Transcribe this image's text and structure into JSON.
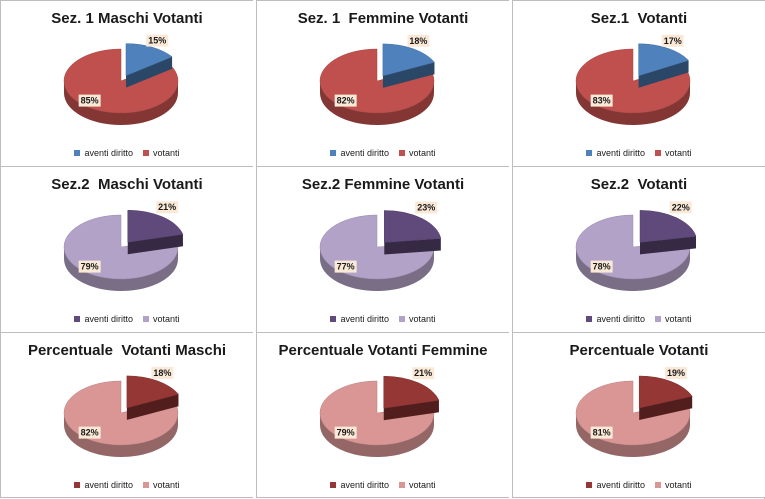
{
  "chart_data": [
    {
      "type": "pie",
      "title": "Sez. 1 Maschi Votanti",
      "legend_position": "bottom",
      "slices": [
        {
          "name": "aventi diritto",
          "value": 15,
          "label": "15%",
          "color": "#4f81bd",
          "exploded": true
        },
        {
          "name": "votanti",
          "value": 85,
          "label": "85%",
          "color": "#c0504d",
          "exploded": false
        }
      ]
    },
    {
      "type": "pie",
      "title": "Sez. 1  Femmine Votanti",
      "legend_position": "bottom",
      "slices": [
        {
          "name": "aventi diritto",
          "value": 18,
          "label": "18%",
          "color": "#4f81bd",
          "exploded": true
        },
        {
          "name": "votanti",
          "value": 82,
          "label": "82%",
          "color": "#c0504d",
          "exploded": false
        }
      ]
    },
    {
      "type": "pie",
      "title": "Sez.1  Votanti",
      "legend_position": "bottom",
      "slices": [
        {
          "name": "aventi diritto",
          "value": 17,
          "label": "17%",
          "color": "#4f81bd",
          "exploded": true
        },
        {
          "name": "votanti",
          "value": 83,
          "label": "83%",
          "color": "#c0504d",
          "exploded": false
        }
      ]
    },
    {
      "type": "pie",
      "title": "Sez.2  Maschi Votanti",
      "legend_position": "bottom",
      "slices": [
        {
          "name": "aventi diritto",
          "value": 21,
          "label": "21%",
          "color": "#604a7b",
          "exploded": true
        },
        {
          "name": "votanti",
          "value": 79,
          "label": "79%",
          "color": "#b3a2c7",
          "exploded": false
        }
      ]
    },
    {
      "type": "pie",
      "title": "Sez.2 Femmine Votanti",
      "legend_position": "bottom",
      "slices": [
        {
          "name": "aventi diritto",
          "value": 23,
          "label": "23%",
          "color": "#604a7b",
          "exploded": true
        },
        {
          "name": "votanti",
          "value": 77,
          "label": "77%",
          "color": "#b3a2c7",
          "exploded": false
        }
      ]
    },
    {
      "type": "pie",
      "title": "Sez.2  Votanti",
      "legend_position": "bottom",
      "slices": [
        {
          "name": "aventi diritto",
          "value": 22,
          "label": "22%",
          "color": "#604a7b",
          "exploded": true
        },
        {
          "name": "votanti",
          "value": 78,
          "label": "78%",
          "color": "#b3a2c7",
          "exploded": false
        }
      ]
    },
    {
      "type": "pie",
      "title": "Percentuale  Votanti Maschi",
      "legend_position": "bottom",
      "slices": [
        {
          "name": "aventi diritto",
          "value": 18,
          "label": "18%",
          "color": "#953735",
          "exploded": true
        },
        {
          "name": "votanti",
          "value": 82,
          "label": "82%",
          "color": "#d99694",
          "exploded": false
        }
      ]
    },
    {
      "type": "pie",
      "title": "Percentuale Votanti Femmine",
      "legend_position": "bottom",
      "slices": [
        {
          "name": "aventi diritto",
          "value": 21,
          "label": "21%",
          "color": "#953735",
          "exploded": true
        },
        {
          "name": "votanti",
          "value": 79,
          "label": "79%",
          "color": "#d99694",
          "exploded": false
        }
      ]
    },
    {
      "type": "pie",
      "title": "Percentuale Votanti",
      "legend_position": "bottom",
      "slices": [
        {
          "name": "aventi diritto",
          "value": 19,
          "label": "19%",
          "color": "#953735",
          "exploded": true
        },
        {
          "name": "votanti",
          "value": 81,
          "label": "81%",
          "color": "#d99694",
          "exploded": false
        }
      ]
    }
  ]
}
